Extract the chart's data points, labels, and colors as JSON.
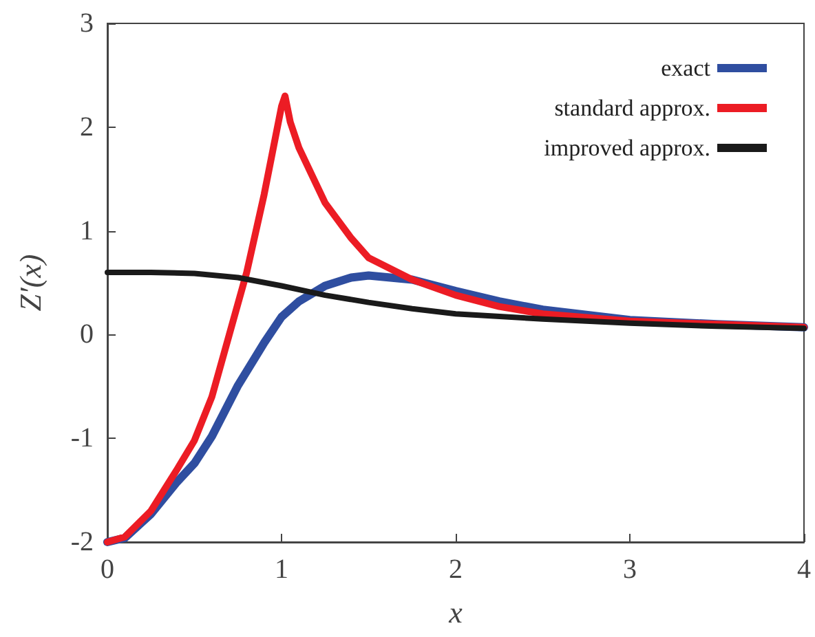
{
  "chart_data": {
    "type": "line",
    "xlabel": "x",
    "ylabel": "Z′(x)",
    "xlim": [
      0,
      4
    ],
    "ylim": [
      -2,
      3
    ],
    "xticks": [
      0,
      1,
      2,
      3,
      4
    ],
    "yticks": [
      -2,
      -1,
      0,
      1,
      2,
      3
    ],
    "grid": false,
    "legend": "top right",
    "marker": "none",
    "line_style": "solid",
    "series": [
      {
        "name": "exact",
        "color": "#2f4ea0",
        "x": [
          0,
          0.1,
          0.25,
          0.4,
          0.5,
          0.6,
          0.75,
          0.9,
          1,
          1.1,
          1.25,
          1.4,
          1.5,
          1.75,
          2,
          2.25,
          2.5,
          3,
          3.5,
          4
        ],
        "values": [
          -2,
          -1.96,
          -1.73,
          -1.42,
          -1.24,
          -0.98,
          -0.49,
          -0.08,
          0.17,
          0.32,
          0.47,
          0.55,
          0.57,
          0.53,
          0.42,
          0.32,
          0.24,
          0.14,
          0.1,
          0.07
        ]
      },
      {
        "name": "standard approx.",
        "color": "#ec1c24",
        "x": [
          0,
          0.1,
          0.25,
          0.4,
          0.5,
          0.6,
          0.7,
          0.8,
          0.9,
          1,
          1.02,
          1.05,
          1.1,
          1.25,
          1.4,
          1.5,
          1.75,
          2,
          2.25,
          2.5,
          3,
          3.5,
          4
        ],
        "values": [
          -2,
          -1.95,
          -1.7,
          -1.3,
          -1.02,
          -0.6,
          0,
          0.6,
          1.35,
          2.2,
          2.3,
          2.05,
          1.8,
          1.27,
          0.93,
          0.74,
          0.53,
          0.38,
          0.27,
          0.2,
          0.13,
          0.1,
          0.07
        ]
      },
      {
        "name": "improved approx.",
        "color": "#1a1a1a",
        "x": [
          0,
          0.25,
          0.5,
          0.75,
          1,
          1.25,
          1.5,
          1.75,
          2,
          2.5,
          3,
          3.5,
          4
        ],
        "values": [
          0.6,
          0.6,
          0.59,
          0.55,
          0.47,
          0.38,
          0.31,
          0.25,
          0.2,
          0.15,
          0.11,
          0.08,
          0.06
        ]
      }
    ]
  }
}
